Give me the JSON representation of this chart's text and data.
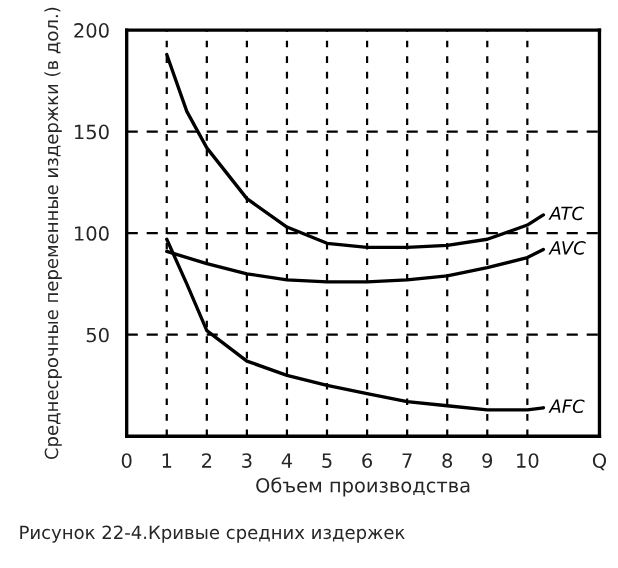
{
  "chart_data": {
    "type": "line",
    "xlabel": "Объем производства",
    "ylabel": "Среднесрочные переменные издержки (в дол.)",
    "annotations": [
      "Рисунок 22-4.Кривые средних издержек"
    ],
    "series": [
      {
        "name": "ATC",
        "color": "#000000",
        "x": [
          1,
          1.5,
          2,
          3,
          4,
          5,
          6,
          7,
          8,
          9,
          10,
          10.4
        ],
        "values": [
          188,
          160,
          142,
          117,
          103,
          95,
          93,
          93,
          94,
          97,
          104,
          109
        ]
      },
      {
        "name": "AVC",
        "color": "#000000",
        "x": [
          1,
          2,
          3,
          4,
          5,
          6,
          7,
          8,
          9,
          10,
          10.4
        ],
        "values": [
          91,
          85,
          80,
          77,
          76,
          76,
          77,
          79,
          83,
          88,
          92
        ]
      },
      {
        "name": "AFC",
        "color": "#000000",
        "x": [
          1,
          1.5,
          2,
          3,
          4,
          5,
          6,
          7,
          8,
          9,
          10,
          10.4
        ],
        "values": [
          97,
          75,
          52,
          37,
          30,
          25,
          21,
          17,
          15,
          13,
          13,
          14
        ]
      }
    ],
    "xlim": [
      0,
      11.8
    ],
    "xticks": [
      0,
      1,
      2,
      3,
      4,
      5,
      6,
      7,
      8,
      9,
      10,
      {
        "value": 11.8,
        "label": "Q"
      }
    ],
    "ylim": [
      0,
      200
    ],
    "yticks": [
      {
        "value": 0,
        "label": null
      },
      50,
      100,
      150,
      200
    ],
    "grid": true,
    "line_style": "solid",
    "marker": "none"
  }
}
